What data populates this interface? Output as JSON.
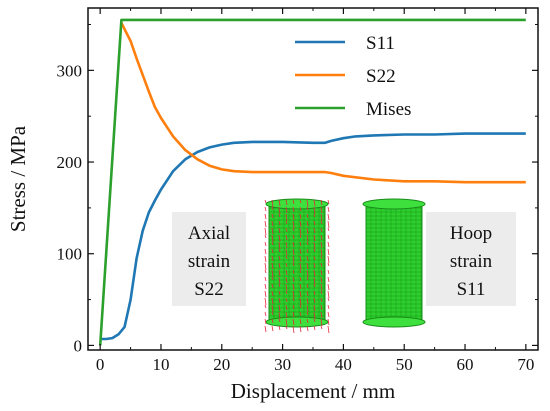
{
  "chart_data": {
    "type": "line",
    "title": "",
    "xlabel": "Displacement / mm",
    "ylabel": "Stress / MPa",
    "xlim": [
      -2,
      72
    ],
    "ylim": [
      -5,
      368
    ],
    "xticks": [
      0,
      10,
      20,
      30,
      40,
      50,
      60,
      70
    ],
    "yticks": [
      0,
      100,
      200,
      300
    ],
    "grid": false,
    "legend_position": "top-center",
    "series": [
      {
        "name": "S11",
        "color": "#1f77b4",
        "x": [
          0,
          1,
          2,
          3,
          4,
          5,
          6,
          7,
          8,
          9,
          10,
          12,
          14,
          16,
          18,
          20,
          22,
          25,
          30,
          35,
          37,
          38,
          40,
          42,
          45,
          50,
          55,
          60,
          65,
          70
        ],
        "y": [
          7,
          7,
          8,
          12,
          20,
          50,
          95,
          125,
          145,
          158,
          170,
          190,
          203,
          211,
          216,
          219,
          221,
          222,
          222,
          221,
          221,
          223,
          226,
          228,
          229,
          230,
          230,
          231,
          231,
          231
        ]
      },
      {
        "name": "S22",
        "color": "#ff7f0e",
        "x": [
          3.5,
          4,
          5,
          6,
          7,
          8,
          9,
          10,
          12,
          14,
          16,
          18,
          20,
          22,
          25,
          30,
          35,
          37,
          38,
          40,
          45,
          50,
          55,
          60,
          65,
          70
        ],
        "y": [
          352,
          345,
          332,
          313,
          295,
          277,
          260,
          248,
          228,
          213,
          203,
          196,
          192,
          190,
          189,
          189,
          189,
          189,
          188,
          185,
          181,
          179,
          179,
          178,
          178,
          178
        ]
      },
      {
        "name": "Mises",
        "color": "#2ca02c",
        "x": [
          0,
          3.5,
          70
        ],
        "y": [
          0,
          355,
          355
        ]
      }
    ],
    "annotations": [
      {
        "lines": [
          "Axial",
          "strain",
          "S22"
        ]
      },
      {
        "lines": [
          "Hoop",
          "strain",
          "S11"
        ]
      }
    ]
  }
}
